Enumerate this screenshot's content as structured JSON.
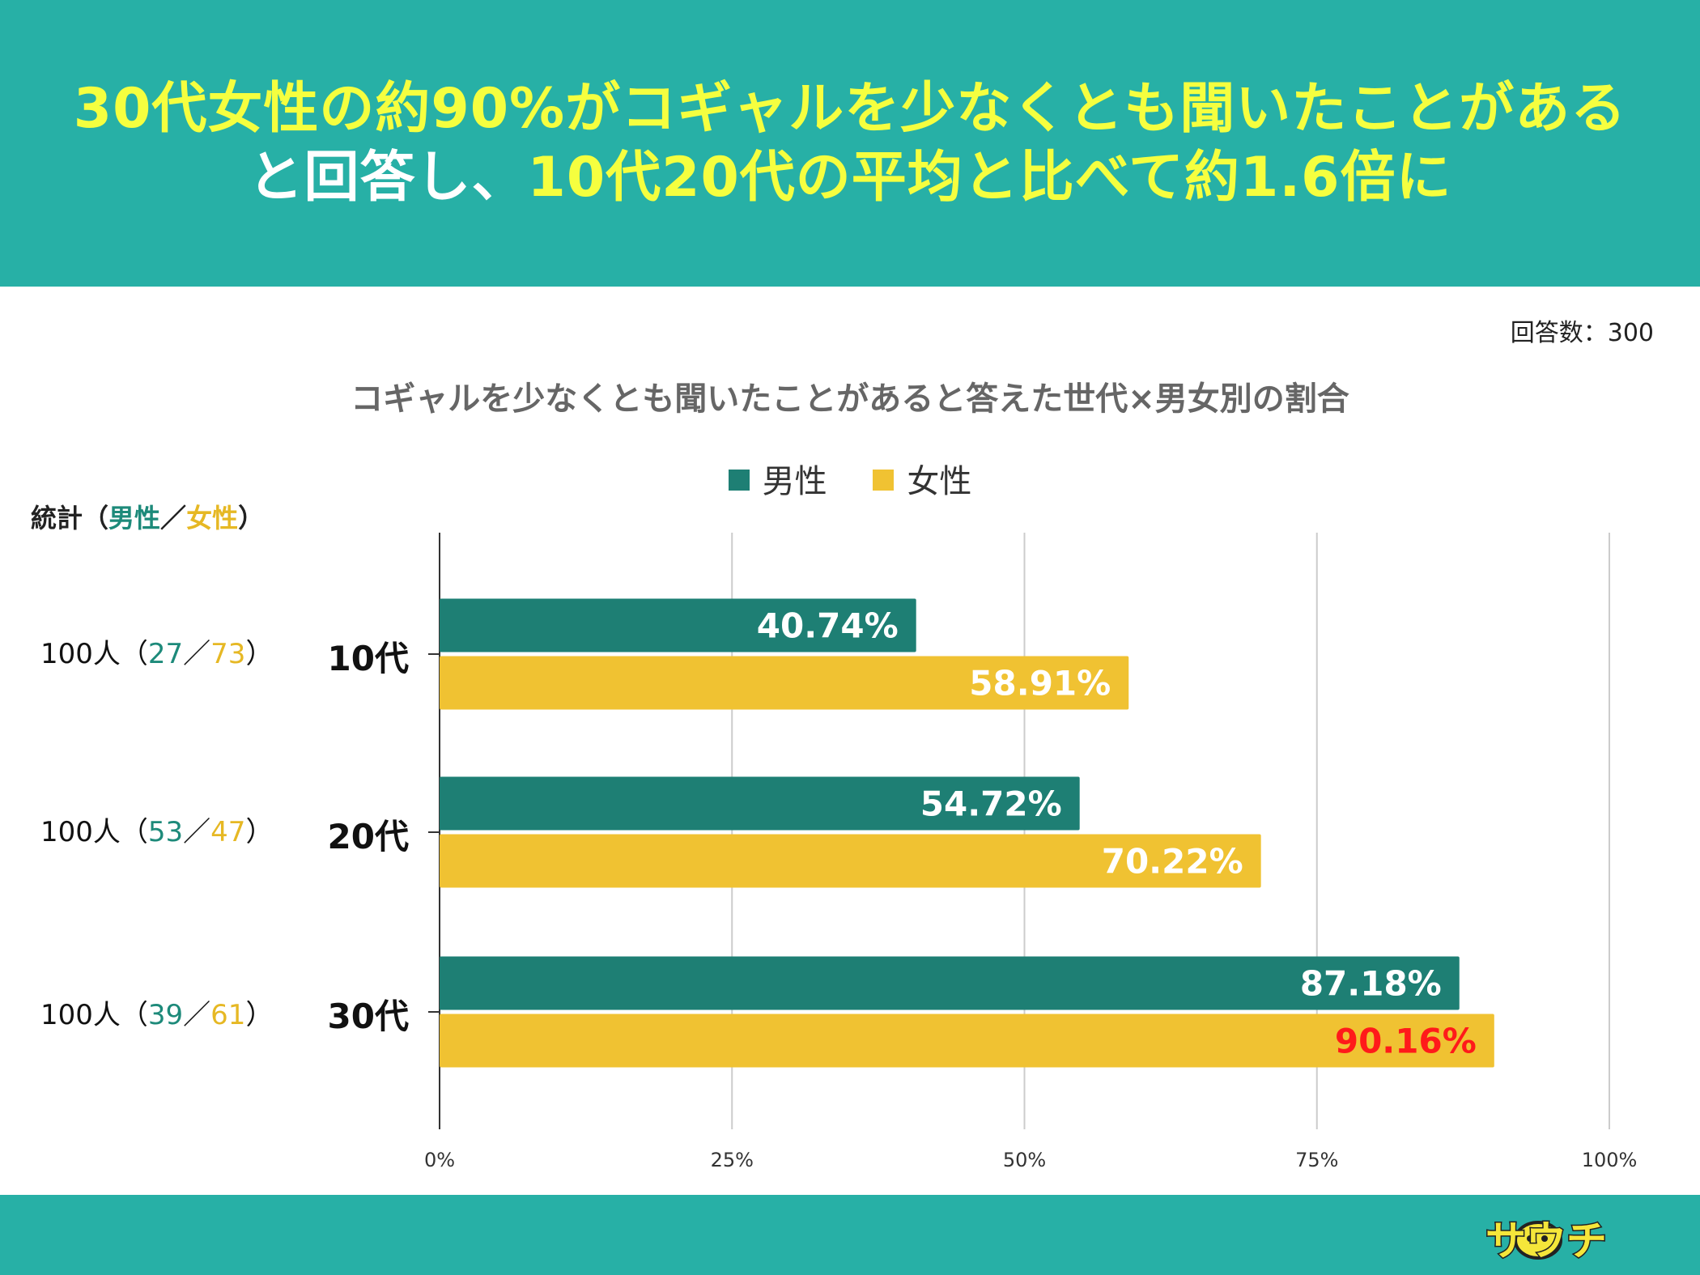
{
  "headline": {
    "line1": "30代女性の約90%がコギャルを少なくとも聞いたことがある",
    "line2_prefix": "と回答し、",
    "line2_accent": "10代20代の平均と比べて約1.6倍に"
  },
  "respondents": "回答数：300",
  "stats": {
    "label": "統計",
    "open": "（",
    "male": "男性",
    "sep": "／",
    "female": "女性",
    "close": "）",
    "rows": [
      {
        "total": "100人",
        "male": "27",
        "female": "73"
      },
      {
        "total": "100人",
        "male": "53",
        "female": "47"
      },
      {
        "total": "100人",
        "male": "39",
        "female": "61"
      }
    ]
  },
  "chart_data": {
    "type": "bar",
    "orientation": "horizontal",
    "title": "コギャルを少なくとも聞いたことがあると答えた世代×男女別の割合",
    "categories": [
      "10代",
      "20代",
      "30代"
    ],
    "series": [
      {
        "name": "男性",
        "color": "#1e7f74",
        "values": [
          40.74,
          54.72,
          87.18
        ],
        "labels": [
          "40.74%",
          "54.72%",
          "87.18%"
        ]
      },
      {
        "name": "女性",
        "color": "#f0c232",
        "values": [
          58.91,
          70.22,
          90.16
        ],
        "labels": [
          "58.91%",
          "70.22%",
          "90.16%"
        ]
      }
    ],
    "xlim": [
      0,
      100
    ],
    "ticks": [
      0,
      25,
      50,
      75,
      100
    ],
    "tick_labels": [
      "0%",
      "25%",
      "50%",
      "75%",
      "100%"
    ],
    "legend_position": "top-center",
    "grid": true,
    "highlight": {
      "series": 1,
      "index": 2,
      "color": "#ff1a1a"
    }
  },
  "brand": {
    "logo_text": "サウチ"
  },
  "colors": {
    "header_bg": "#27b0a6",
    "headline_accent": "#f5ff3f"
  }
}
